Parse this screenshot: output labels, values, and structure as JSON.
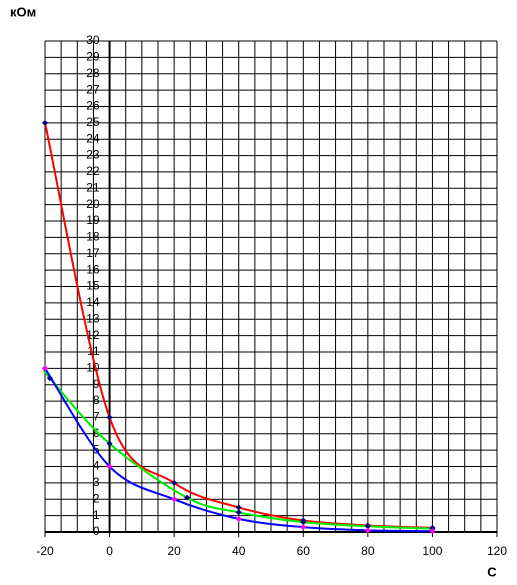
{
  "chart_data": {
    "type": "line",
    "y_label": "кОм",
    "x_label": "C",
    "xlim": [
      -20,
      120
    ],
    "ylim": [
      0,
      30
    ],
    "xticks": [
      -20,
      0,
      20,
      40,
      60,
      80,
      100,
      120
    ],
    "yticks": [
      0,
      1,
      2,
      3,
      4,
      5,
      6,
      7,
      8,
      9,
      10,
      11,
      12,
      13,
      14,
      15,
      16,
      17,
      18,
      19,
      20,
      21,
      22,
      23,
      24,
      25,
      26,
      27,
      28,
      29,
      30
    ],
    "grid": true,
    "x_grid_interval": 5,
    "series": [
      {
        "color": "#ff0000",
        "marker_color": "#000080",
        "x": [
          -20,
          0,
          20,
          40,
          60,
          80,
          100
        ],
        "values": [
          25,
          7,
          3,
          1.5,
          0.7,
          0.4,
          0.25
        ]
      },
      {
        "color": "#00ee00",
        "marker_color": "#000080",
        "x": [
          -20,
          -18.5,
          0,
          24,
          40,
          60,
          80,
          100
        ],
        "values": [
          10,
          9.4,
          5.4,
          2.1,
          1.2,
          0.6,
          0.35,
          0.2
        ]
      },
      {
        "color": "#0000ff",
        "marker_color": "#ff00ff",
        "x": [
          -20,
          0,
          20,
          40,
          60,
          80,
          100
        ],
        "values": [
          10,
          4,
          2,
          0.8,
          0.3,
          0.1,
          0.05
        ]
      }
    ]
  }
}
